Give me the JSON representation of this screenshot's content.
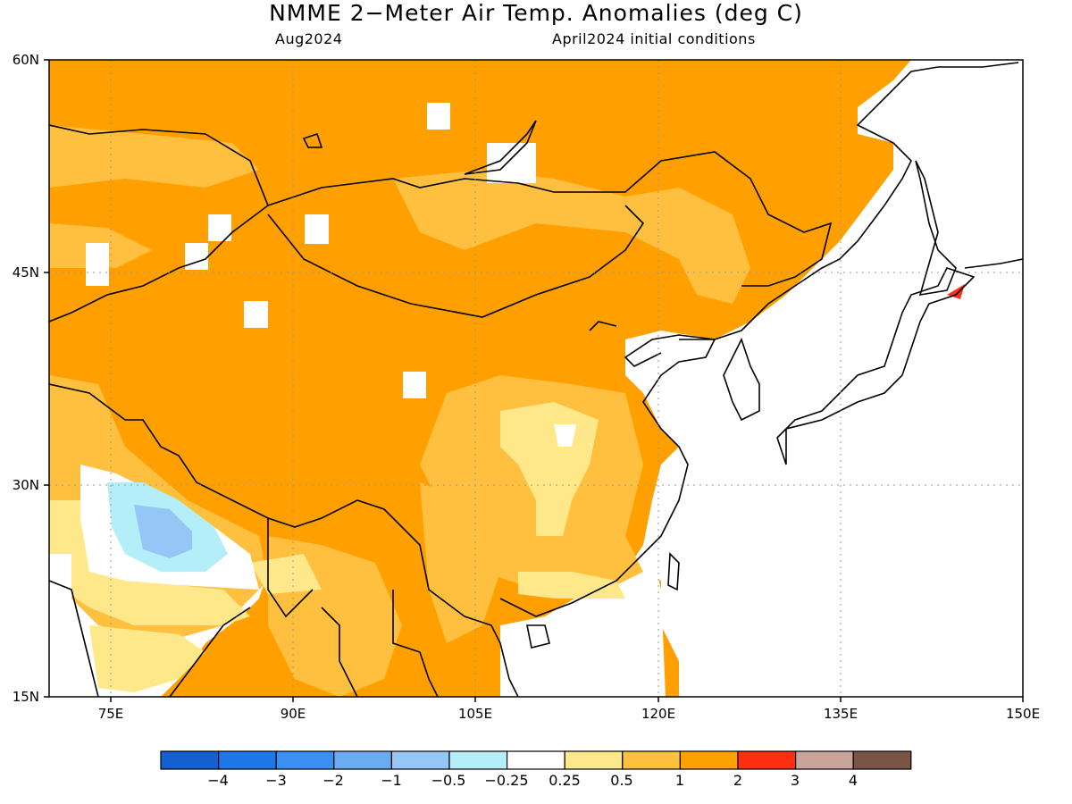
{
  "title": "NMME 2−Meter Air Temp. Anomalies (deg C)",
  "subtitle_left": "Aug2024",
  "subtitle_right": "April2024 initial conditions",
  "lat_labels": [
    "60N",
    "45N",
    "30N",
    "15N"
  ],
  "lon_labels": [
    "75E",
    "90E",
    "105E",
    "120E",
    "135E",
    "150E"
  ],
  "colorbar": {
    "labels": [
      "−4",
      "−3",
      "−2",
      "−1",
      "−0.5",
      "−0.25",
      "0.25",
      "0.5",
      "1",
      "2",
      "3",
      "4"
    ],
    "colors": [
      "#1560d0",
      "#1f78e8",
      "#3a90f0",
      "#6aabf2",
      "#96c6f5",
      "#b4eef8",
      "#ffffff",
      "#ffe88a",
      "#ffc040",
      "#ffa000",
      "#ff3010",
      "#c8a49a",
      "#7a5444"
    ]
  },
  "map": {
    "extent": {
      "lon_min": 70,
      "lon_max": 150,
      "lat_min": 15,
      "lat_max": 60
    },
    "dominant_anomaly_color": "#ffa000"
  }
}
